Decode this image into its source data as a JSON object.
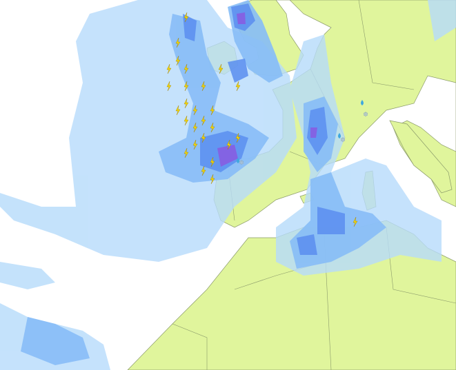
{
  "map": {
    "colors": {
      "sea": "#ffffff",
      "land": "#e0f59c",
      "border": "#8a9a6a",
      "precip_light": "#b6dbfb",
      "precip_moderate": "#87bdf7",
      "precip_heavy": "#5b8ef0",
      "precip_very_heavy": "#8a5ae0",
      "lightning": "#f5d800"
    },
    "icons": [
      "lightning-icon",
      "rain-drop-icon",
      "snowflake-icon"
    ]
  }
}
